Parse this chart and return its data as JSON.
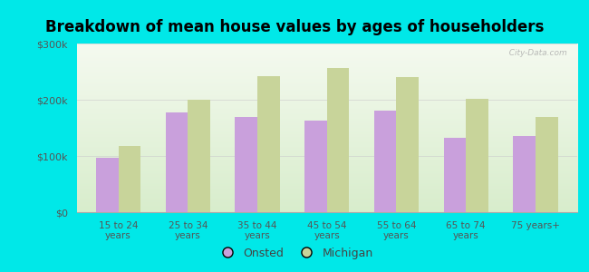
{
  "title": "Breakdown of mean house values by ages of householders",
  "categories": [
    "15 to 24\nyears",
    "25 to 34\nyears",
    "35 to 44\nyears",
    "45 to 54\nyears",
    "55 to 64\nyears",
    "65 to 74\nyears",
    "75 years+"
  ],
  "onsted": [
    97000,
    178000,
    170000,
    163000,
    180000,
    132000,
    135000
  ],
  "michigan": [
    117000,
    200000,
    242000,
    257000,
    240000,
    202000,
    170000
  ],
  "onsted_color": "#c9a0dc",
  "michigan_color": "#c8d49a",
  "background_color": "#00e8e8",
  "plot_bg_top": "#f5faf0",
  "plot_bg_bottom": "#d8edcc",
  "ylim": [
    0,
    300000
  ],
  "yticks": [
    0,
    100000,
    200000,
    300000
  ],
  "ytick_labels": [
    "$0",
    "$100k",
    "$200k",
    "$300k"
  ],
  "legend_labels": [
    "Onsted",
    "Michigan"
  ],
  "grid_color": "#cccccc",
  "watermark": "  City-Data.com",
  "bar_width": 0.32,
  "tick_color": "#555555",
  "title_fontsize": 12
}
